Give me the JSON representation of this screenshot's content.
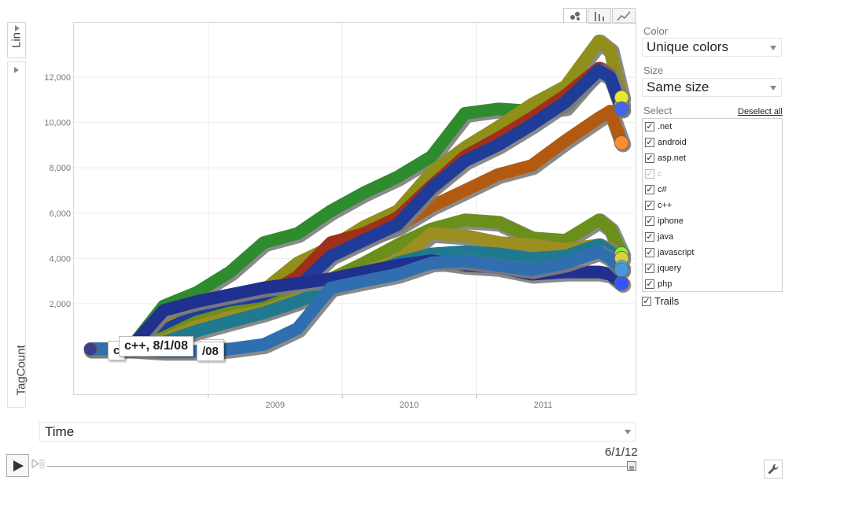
{
  "view_toggle": [
    "bubble-chart-icon",
    "bar-chart-icon",
    "line-chart-icon"
  ],
  "y_axis": {
    "scale_label": "Lin",
    "variable_label": "TagCount"
  },
  "x_axis": {
    "variable_label": "Time"
  },
  "tooltips": [
    {
      "text": "c++, 8/1/08",
      "partial": "c"
    },
    {
      "text": "",
      "partial": "/08"
    },
    {
      "text": "",
      "partial": "08"
    }
  ],
  "panel": {
    "color_label": "Color",
    "color_value": "Unique colors",
    "size_label": "Size",
    "size_value": "Same size",
    "select_label": "Select",
    "deselect_all": "Deselect all",
    "items": [
      {
        "label": ".net",
        "checked": true,
        "dim": false
      },
      {
        "label": "android",
        "checked": true,
        "dim": false
      },
      {
        "label": "asp.net",
        "checked": true,
        "dim": false
      },
      {
        "label": "c",
        "checked": true,
        "dim": true
      },
      {
        "label": "c#",
        "checked": true,
        "dim": false
      },
      {
        "label": "c++",
        "checked": true,
        "dim": false
      },
      {
        "label": "iphone",
        "checked": true,
        "dim": false
      },
      {
        "label": "java",
        "checked": true,
        "dim": false
      },
      {
        "label": "javascript",
        "checked": true,
        "dim": false
      },
      {
        "label": "jquery",
        "checked": true,
        "dim": false
      },
      {
        "label": "php",
        "checked": true,
        "dim": false
      }
    ],
    "trails_label": "Trails"
  },
  "playback": {
    "date": "6/1/12",
    "slider_position": 1.0
  },
  "chart_data": {
    "type": "scatter",
    "title": "",
    "xlabel": "Time",
    "ylabel": "TagCount",
    "y_ticks": [
      2000,
      4000,
      6000,
      8000,
      10000,
      12000
    ],
    "y_tick_labels": [
      "2,000",
      "4,000",
      "6,000",
      "8,000",
      "10,000",
      "12,000"
    ],
    "x_ticks": [
      "2009",
      "2010",
      "2011"
    ],
    "ylim": [
      -2000,
      14400
    ],
    "xlim": [
      "2008-01-01",
      "2012-03-10"
    ],
    "grid": true,
    "x": [
      "2008-06-01",
      "2008-09-01",
      "2008-12-01",
      "2009-03-01",
      "2009-06-01",
      "2009-09-01",
      "2009-12-01",
      "2010-03-01",
      "2010-06-01",
      "2010-09-01",
      "2010-12-01",
      "2011-03-01",
      "2011-06-01",
      "2011-09-01",
      "2011-12-01",
      "2012-01-01",
      "2012-02-01"
    ],
    "series": [
      {
        "color": "#2e8b2e",
        "end_color": "#44dd66",
        "values": [
          0,
          1900,
          2500,
          3400,
          4700,
          5100,
          6100,
          6900,
          7600,
          8500,
          10400,
          10600,
          10500,
          10700,
          12400,
          12200,
          10800
        ]
      },
      {
        "color": "#8f8f1a",
        "end_color": "#e8e830",
        "values": [
          0,
          900,
          1900,
          2400,
          2600,
          3800,
          4500,
          5400,
          6100,
          7800,
          8900,
          9800,
          10800,
          11600,
          13600,
          13200,
          11100
        ]
      },
      {
        "color": "#b35a12",
        "end_color": "#ff8c2e",
        "values": [
          0,
          700,
          1400,
          2000,
          2400,
          3000,
          4200,
          4900,
          5400,
          6300,
          7000,
          7700,
          8100,
          9200,
          10200,
          10500,
          9100
        ]
      },
      {
        "color": "#a0301a",
        "end_color": "#ee4433",
        "values": [
          0,
          600,
          1300,
          1900,
          2300,
          3200,
          4700,
          5100,
          5800,
          7200,
          8500,
          9300,
          10200,
          11200,
          12400,
          12100,
          10600
        ]
      },
      {
        "color": "#1f3c99",
        "end_color": "#4466ee",
        "values": [
          0,
          800,
          1500,
          2000,
          2200,
          2700,
          4100,
          4800,
          5500,
          7100,
          8300,
          9000,
          9900,
          10900,
          12300,
          12000,
          10600
        ]
      },
      {
        "color": "#6a8f1a",
        "end_color": "#88ee33",
        "values": [
          0,
          500,
          1200,
          1600,
          1800,
          2400,
          3100,
          3800,
          4600,
          5300,
          5700,
          5600,
          4900,
          4800,
          5700,
          5300,
          4200
        ]
      },
      {
        "color": "#9a8f20",
        "end_color": "#d8d040",
        "values": [
          0,
          400,
          1000,
          1400,
          1700,
          2200,
          2900,
          3400,
          3900,
          5100,
          5000,
          4700,
          4600,
          4400,
          4600,
          4400,
          4000
        ]
      },
      {
        "color": "#1f7a8f",
        "end_color": "#33ccee",
        "values": [
          0,
          300,
          800,
          1200,
          1600,
          2100,
          2700,
          3200,
          3800,
          4200,
          4300,
          4200,
          4000,
          4100,
          4600,
          4300,
          3600
        ]
      },
      {
        "color": "#20308f",
        "end_color": "#3355ff",
        "values": [
          0,
          1700,
          2100,
          2400,
          2700,
          2900,
          3100,
          3400,
          3700,
          3900,
          3700,
          3600,
          3300,
          3400,
          3400,
          3300,
          2900
        ]
      },
      {
        "color": "#2f6fb0",
        "end_color": "#4499dd",
        "values": [
          0,
          -100,
          -100,
          0,
          200,
          900,
          2700,
          3000,
          3300,
          3800,
          3900,
          3700,
          3500,
          3800,
          4300,
          4000,
          3500
        ]
      }
    ]
  }
}
